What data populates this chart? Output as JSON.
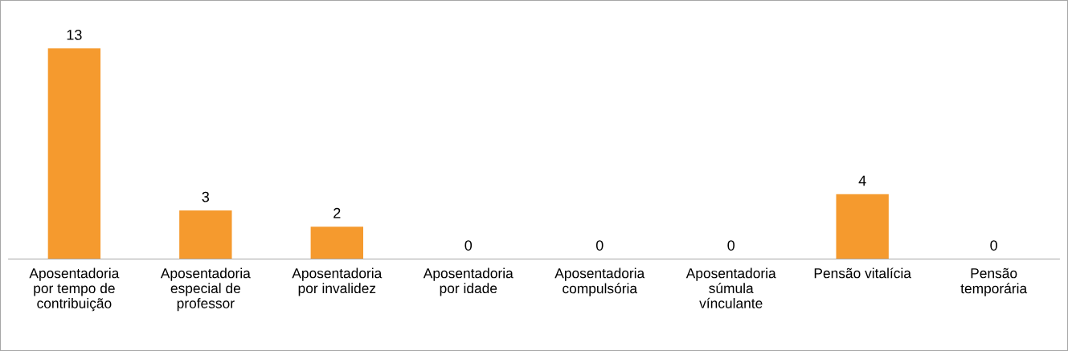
{
  "chart_data": {
    "type": "bar",
    "categories": [
      "Aposentadoria\npor tempo de\ncontribuição",
      "Aposentadoria\nespecial de\nprofessor",
      "Aposentadoria\npor invalidez",
      "Aposentadoria\npor idade",
      "Aposentadoria\ncompulsória",
      "Aposentadoria\nsúmula\nvínculante",
      "Pensão vitalícia",
      "Pensão\ntemporária"
    ],
    "values": [
      13,
      3,
      2,
      0,
      0,
      0,
      4,
      0
    ],
    "color": "#f59a2e",
    "data_labels": true,
    "grid": false,
    "legend": false,
    "tick_labels": "x"
  }
}
